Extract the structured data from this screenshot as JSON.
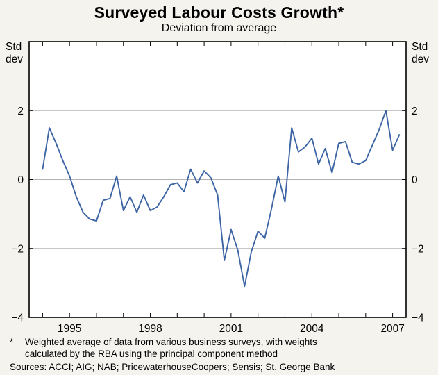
{
  "page": {
    "background": "#f4f3ee"
  },
  "chart_data": {
    "type": "line",
    "title": "Surveyed Labour Costs Growth*",
    "subtitle": "Deviation from average",
    "y_axis_label_lines": [
      "Std",
      "dev"
    ],
    "xlim": [
      1993.5,
      2007.5
    ],
    "ylim": [
      -4,
      4
    ],
    "x_ticks": [
      1995,
      1998,
      2001,
      2004,
      2007
    ],
    "x_tick_labels": [
      "1995",
      "1998",
      "2001",
      "2004",
      "2007"
    ],
    "x_minor_ticks": [
      1994,
      1995,
      1996,
      1997,
      1998,
      1999,
      2000,
      2001,
      2002,
      2003,
      2004,
      2005,
      2006,
      2007
    ],
    "y_ticks": [
      2,
      0,
      -2,
      -4
    ],
    "y_tick_labels": [
      "2",
      "0",
      "−2",
      "−4"
    ],
    "gridlines": [
      2,
      0,
      -2
    ],
    "grid_on": true,
    "legend": "none",
    "grid_color": "#b3b3b3",
    "plot_background": "#ffffff",
    "border_color": "#000000",
    "series": [
      {
        "name": "Surveyed labour costs growth (deviation from average, quarterly)",
        "color": "#3d65a5",
        "x": [
          1994.0,
          1994.25,
          1994.5,
          1994.75,
          1995.0,
          1995.25,
          1995.5,
          1995.75,
          1996.0,
          1996.25,
          1996.5,
          1996.75,
          1997.0,
          1997.25,
          1997.5,
          1997.75,
          1998.0,
          1998.25,
          1998.5,
          1998.75,
          1999.0,
          1999.25,
          1999.5,
          1999.75,
          2000.0,
          2000.25,
          2000.5,
          2000.75,
          2001.0,
          2001.25,
          2001.5,
          2001.75,
          2002.0,
          2002.25,
          2002.5,
          2002.75,
          2003.0,
          2003.25,
          2003.5,
          2003.75,
          2004.0,
          2004.25,
          2004.5,
          2004.75,
          2005.0,
          2005.25,
          2005.5,
          2005.75,
          2006.0,
          2006.25,
          2006.5,
          2006.75,
          2007.0,
          2007.25
        ],
        "values": [
          0.3,
          1.5,
          1.05,
          0.55,
          0.1,
          -0.5,
          -0.95,
          -1.15,
          -1.2,
          -0.6,
          -0.55,
          0.1,
          -0.9,
          -0.5,
          -0.95,
          -0.45,
          -0.9,
          -0.8,
          -0.5,
          -0.15,
          -0.1,
          -0.35,
          0.3,
          -0.1,
          0.25,
          0.05,
          -0.45,
          -2.35,
          -1.45,
          -2.05,
          -3.1,
          -2.1,
          -1.5,
          -1.7,
          -0.85,
          0.1,
          -0.65,
          1.5,
          0.8,
          0.95,
          1.2,
          0.45,
          0.9,
          0.2,
          1.05,
          1.1,
          0.5,
          0.45,
          0.55,
          1.0,
          1.45,
          2.0,
          0.85,
          1.3
        ]
      }
    ]
  },
  "footnote": {
    "marker": "*",
    "text": "Weighted average of data from various business surveys, with weights calculated by the RBA using the principal component method"
  },
  "sources": "Sources: ACCI; AIG; NAB; PricewaterhouseCoopers; Sensis; St. George Bank"
}
